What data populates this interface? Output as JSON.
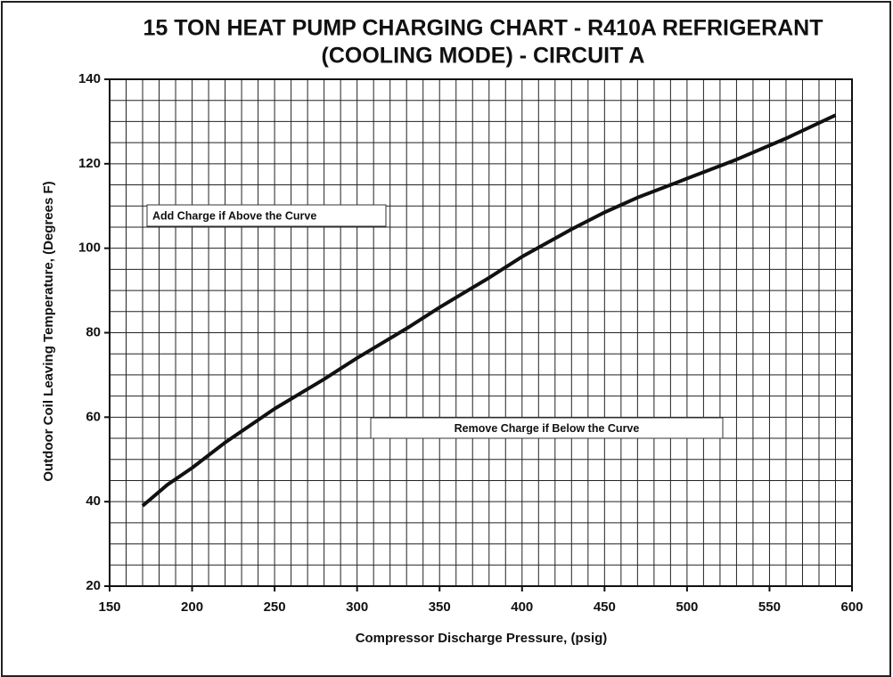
{
  "chart_data": {
    "type": "line",
    "title": [
      "15 TON HEAT PUMP CHARGING CHART - R410A REFRIGERANT",
      "(COOLING MODE) - CIRCUIT A"
    ],
    "xlabel": "Compressor Discharge Pressure, (psig)",
    "ylabel": "Outdoor Coil Leaving Temperature, (Degrees F)",
    "annotations": [
      "Add Charge if Above the Curve",
      "Remove Charge if Below the Curve"
    ],
    "x": [
      170,
      185,
      200,
      220,
      250,
      280,
      300,
      330,
      350,
      380,
      400,
      430,
      450,
      470,
      500,
      530,
      560,
      590
    ],
    "values": [
      39,
      44,
      48,
      54,
      62,
      69,
      74,
      81,
      86,
      93,
      98,
      104.5,
      108.5,
      112,
      116.5,
      121,
      126,
      131.5
    ],
    "color": "#111111",
    "xlim": [
      150,
      600
    ],
    "ylim": [
      20,
      140
    ],
    "xticks": [
      150,
      200,
      250,
      300,
      350,
      400,
      450,
      500,
      550,
      600
    ],
    "yticks": [
      20,
      40,
      60,
      80,
      100,
      120,
      140
    ],
    "xminorticks": [
      150,
      160,
      170,
      180,
      190,
      200,
      210,
      220,
      230,
      240,
      250,
      260,
      270,
      280,
      290,
      300,
      310,
      320,
      330,
      340,
      350,
      360,
      370,
      380,
      390,
      400,
      410,
      420,
      430,
      440,
      450,
      460,
      470,
      480,
      490,
      500,
      510,
      520,
      530,
      540,
      550,
      560,
      570,
      580,
      590,
      600
    ],
    "yminorticks": [
      20,
      25,
      30,
      35,
      40,
      45,
      50,
      55,
      60,
      65,
      70,
      75,
      80,
      85,
      90,
      95,
      100,
      105,
      110,
      115,
      120,
      125,
      130,
      135,
      140
    ],
    "grid": true
  }
}
